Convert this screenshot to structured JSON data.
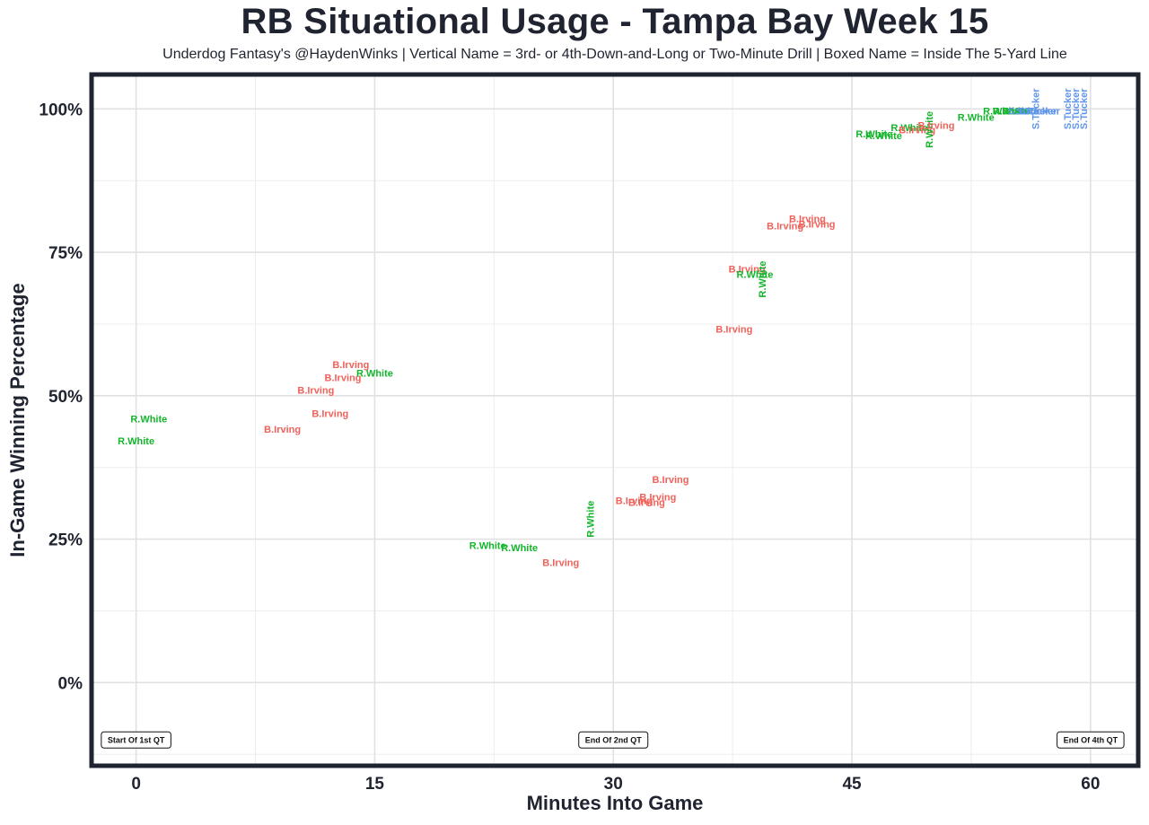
{
  "chart_data": {
    "type": "scatter",
    "title": "RB Situational Usage - Tampa Bay Week 15",
    "subtitle": "Underdog Fantasy's @HaydenWinks | Vertical Name = 3rd- or 4th-Down-and-Long or Two-Minute Drill | Boxed Name = Inside The 5-Yard Line",
    "xlabel": "Minutes Into Game",
    "ylabel": "In-Game Winning Percentage",
    "xlim": [
      -2.8,
      63
    ],
    "ylim": [
      -14.5,
      106
    ],
    "xticks": [
      0,
      15,
      30,
      45,
      60
    ],
    "xtick_labels": [
      "0",
      "15",
      "30",
      "45",
      "60"
    ],
    "yticks": [
      0,
      25,
      50,
      75,
      100
    ],
    "ytick_labels": [
      "0%",
      "25%",
      "50%",
      "75%",
      "100%"
    ],
    "grid": true,
    "colors": {
      "B.Irving": "#f0615a",
      "R.White": "#14b52c",
      "S.Tucker": "#5f95ed"
    },
    "annotations": [
      {
        "label": "Start Of 1st QT",
        "x": 0,
        "y": -10
      },
      {
        "label": "End Of 2nd QT",
        "x": 30,
        "y": -10
      },
      {
        "label": "End Of 4th QT",
        "x": 60,
        "y": -10
      }
    ],
    "points": [
      {
        "player": "R.White",
        "x": 0.8,
        "y": 45.8
      },
      {
        "player": "R.White",
        "x": 0.0,
        "y": 42.0
      },
      {
        "player": "B.Irving",
        "x": 9.2,
        "y": 44.0
      },
      {
        "player": "B.Irving",
        "x": 11.3,
        "y": 50.8
      },
      {
        "player": "B.Irving",
        "x": 12.2,
        "y": 46.8
      },
      {
        "player": "B.Irving",
        "x": 13.0,
        "y": 53.0
      },
      {
        "player": "B.Irving",
        "x": 13.5,
        "y": 55.3
      },
      {
        "player": "R.White",
        "x": 15.0,
        "y": 53.8
      },
      {
        "player": "R.White",
        "x": 22.1,
        "y": 23.8
      },
      {
        "player": "R.White",
        "x": 24.1,
        "y": 23.4
      },
      {
        "player": "B.Irving",
        "x": 26.7,
        "y": 20.8
      },
      {
        "player": "R.White",
        "x": 28.6,
        "y": 28.5,
        "vertical": true
      },
      {
        "player": "B.Irving",
        "x": 31.3,
        "y": 31.6
      },
      {
        "player": "B.Irving",
        "x": 32.1,
        "y": 31.3
      },
      {
        "player": "B.Irving",
        "x": 32.8,
        "y": 32.2
      },
      {
        "player": "B.Irving",
        "x": 33.6,
        "y": 35.3
      },
      {
        "player": "B.Irving",
        "x": 37.6,
        "y": 61.5
      },
      {
        "player": "B.Irving",
        "x": 38.4,
        "y": 72.0
      },
      {
        "player": "R.White",
        "x": 38.9,
        "y": 71.0
      },
      {
        "player": "R.White",
        "x": 39.4,
        "y": 70.3,
        "vertical": true
      },
      {
        "player": "B.Irving",
        "x": 40.8,
        "y": 79.5
      },
      {
        "player": "B.Irving",
        "x": 42.2,
        "y": 80.7
      },
      {
        "player": "B.Irving",
        "x": 42.8,
        "y": 79.8
      },
      {
        "player": "R.White",
        "x": 46.4,
        "y": 95.5
      },
      {
        "player": "R.White",
        "x": 47.0,
        "y": 95.2
      },
      {
        "player": "R.White",
        "x": 48.6,
        "y": 96.6
      },
      {
        "player": "B.Irving",
        "x": 49.1,
        "y": 96.2
      },
      {
        "player": "R.White",
        "x": 49.9,
        "y": 96.4,
        "vertical": true
      },
      {
        "player": "B.Irving",
        "x": 50.3,
        "y": 97.0
      },
      {
        "player": "R.White",
        "x": 52.8,
        "y": 98.4
      },
      {
        "player": "R.White",
        "x": 54.4,
        "y": 99.5
      },
      {
        "player": "R.White",
        "x": 55.0,
        "y": 99.5
      },
      {
        "player": "R.White",
        "x": 55.6,
        "y": 99.5
      },
      {
        "player": "S.Tucker",
        "x": 56.1,
        "y": 99.5
      },
      {
        "player": "S.Tucker",
        "x": 56.6,
        "y": 99.5
      },
      {
        "player": "S.Tucker",
        "x": 56.8,
        "y": 99.5
      },
      {
        "player": "S.Tucker",
        "x": 56.6,
        "y": 100.0,
        "vertical": true
      },
      {
        "player": "S.Tucker",
        "x": 58.6,
        "y": 100.0,
        "vertical": true
      },
      {
        "player": "S.Tucker",
        "x": 59.1,
        "y": 100.0,
        "vertical": true
      },
      {
        "player": "S.Tucker",
        "x": 59.6,
        "y": 100.0,
        "vertical": true
      }
    ]
  }
}
